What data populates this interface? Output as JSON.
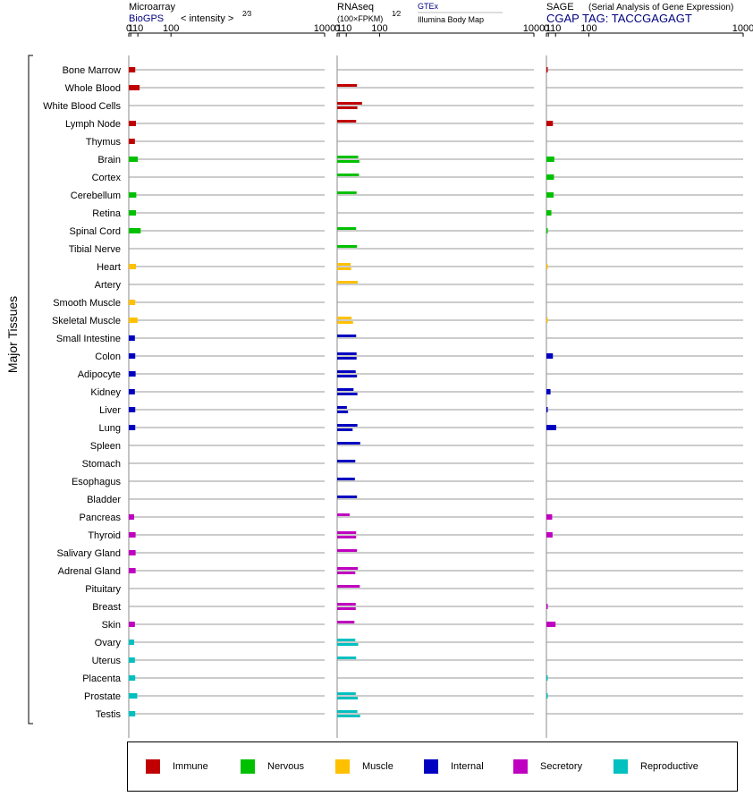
{
  "panels": [
    {
      "id": "microarray",
      "title": "Microarray",
      "subtitle": "BioGPS",
      "unit": "< intensity >",
      "unit_exp": "2⁄3",
      "extra": "",
      "ticks": [
        "0",
        "1",
        "10",
        "100",
        "1000"
      ]
    },
    {
      "id": "rnaseq",
      "title": "RNAseq",
      "subtitle": "(100×FPKM)",
      "unit": "",
      "unit_exp": "1⁄2",
      "extra": "GTEx",
      "extra2": "Illumina Body Map",
      "ticks": [
        "0",
        "1",
        "10",
        "100",
        "1000"
      ]
    },
    {
      "id": "sage",
      "title": "SAGE",
      "subtitle": "CGAP TAG: TACCGAGAGT",
      "unit": "(Serial Analysis of Gene Expression)",
      "unit_exp": "",
      "extra": "",
      "ticks": [
        "0",
        "1",
        "10",
        "100",
        "1000"
      ]
    }
  ],
  "y_axis_label": "Major Tissues",
  "legend": [
    {
      "label": "Immune",
      "color": "#c00000"
    },
    {
      "label": "Nervous",
      "color": "#00c000"
    },
    {
      "label": "Muscle",
      "color": "#ffc000"
    },
    {
      "label": "Internal",
      "color": "#0000c0"
    },
    {
      "label": "Secretory",
      "color": "#c000c0"
    },
    {
      "label": "Reproductive",
      "color": "#00c0c0"
    }
  ],
  "chart_data": {
    "type": "bar",
    "orientation": "horizontal",
    "x_scale": "power",
    "xlim": [
      0,
      1000
    ],
    "categories": [
      "Bone Marrow",
      "Whole Blood",
      "White Blood Cells",
      "Lymph Node",
      "Thymus",
      "Brain",
      "Cortex",
      "Cerebellum",
      "Retina",
      "Spinal Cord",
      "Tibial Nerve",
      "Heart",
      "Artery",
      "Smooth Muscle",
      "Skeletal Muscle",
      "Small Intestine",
      "Colon",
      "Adipocyte",
      "Kidney",
      "Liver",
      "Lung",
      "Spleen",
      "Stomach",
      "Esophagus",
      "Bladder",
      "Pancreas",
      "Thyroid",
      "Salivary Gland",
      "Adrenal Gland",
      "Pituitary",
      "Breast",
      "Skin",
      "Ovary",
      "Uterus",
      "Placenta",
      "Prostate",
      "Testis"
    ],
    "groups": [
      "Immune",
      "Immune",
      "Immune",
      "Immune",
      "Immune",
      "Nervous",
      "Nervous",
      "Nervous",
      "Nervous",
      "Nervous",
      "Nervous",
      "Muscle",
      "Muscle",
      "Muscle",
      "Muscle",
      "Internal",
      "Internal",
      "Internal",
      "Internal",
      "Internal",
      "Internal",
      "Internal",
      "Internal",
      "Internal",
      "Internal",
      "Secretory",
      "Secretory",
      "Secretory",
      "Secretory",
      "Secretory",
      "Secretory",
      "Secretory",
      "Reproductive",
      "Reproductive",
      "Reproductive",
      "Reproductive",
      "Reproductive"
    ],
    "microarray": [
      6,
      13,
      null,
      7,
      5.5,
      10,
      null,
      7.5,
      7,
      15,
      null,
      7,
      null,
      6,
      9.5,
      5.5,
      6,
      6.5,
      5.5,
      6,
      6,
      null,
      null,
      null,
      null,
      4.5,
      6.5,
      6.5,
      6.5,
      null,
      null,
      5.5,
      4.5,
      5.5,
      6,
      9,
      6
    ],
    "rnaseq_gtex": [
      null,
      null,
      null,
      null,
      null,
      null,
      null,
      null,
      null,
      null,
      null,
      null,
      null,
      null,
      null,
      null,
      null,
      null,
      null,
      null,
      null,
      null,
      null,
      null,
      null,
      null,
      null,
      null,
      null,
      null,
      null,
      null,
      null,
      null,
      null,
      null,
      null
    ],
    "rnaseq": [
      [
        null
      ],
      [
        32
      ],
      [
        45,
        33
      ],
      [
        30
      ],
      [
        null
      ],
      [
        35,
        38
      ],
      [
        37
      ],
      [
        31
      ],
      [
        null
      ],
      [
        30
      ],
      [
        32
      ],
      [
        18,
        19
      ],
      [
        34
      ],
      [
        null
      ],
      [
        20,
        23
      ],
      [
        30
      ],
      [
        31,
        31
      ],
      [
        29,
        32
      ],
      [
        24,
        33
      ],
      [
        11,
        13
      ],
      [
        33,
        22
      ],
      [
        40
      ],
      [
        28
      ],
      [
        27
      ],
      [
        32
      ],
      [
        16
      ],
      [
        30,
        30
      ],
      [
        32
      ],
      [
        34,
        28
      ],
      [
        39
      ],
      [
        29,
        29
      ],
      [
        26
      ],
      [
        28,
        35
      ],
      [
        30
      ],
      [
        null
      ],
      [
        29,
        34
      ],
      [
        33,
        40
      ]
    ],
    "sage": [
      0.01,
      null,
      null,
      6,
      null,
      8,
      7.5,
      7,
      4,
      0.01,
      null,
      0.005,
      null,
      null,
      0.005,
      null,
      6,
      null,
      3,
      0.01,
      11,
      null,
      null,
      null,
      null,
      5,
      5.5,
      null,
      null,
      null,
      0.01,
      10,
      null,
      null,
      0.01,
      0.01,
      null
    ]
  }
}
